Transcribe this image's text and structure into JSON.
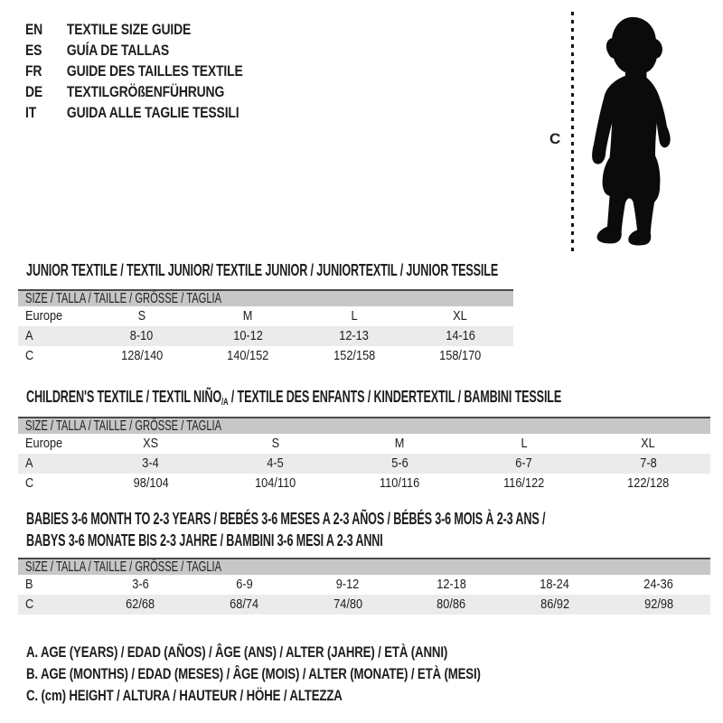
{
  "colors": {
    "header_band": "#c7c7c7",
    "shaded_row": "#ebebeb",
    "band_top_border": "#4a4a4a",
    "text": "#1d1d1d"
  },
  "languages": [
    {
      "code": "EN",
      "title": "TEXTILE SIZE GUIDE"
    },
    {
      "code": "ES",
      "title": "GUÍA DE TALLAS"
    },
    {
      "code": "FR",
      "title": "GUIDE DES TAILLES TEXTILE"
    },
    {
      "code": "DE",
      "title": "TEXTILGRÖßENFÜHRUNG"
    },
    {
      "code": "IT",
      "title": "GUIDA ALLE TAGLIE TESSILI"
    }
  ],
  "figure": {
    "height_label": "C",
    "silhouette": "toddler-silhouette"
  },
  "sections": [
    {
      "title": "JUNIOR TEXTILE / TEXTIL JUNIOR/ TEXTILE JUNIOR / JUNIORTEXTIL / JUNIOR TESSILE",
      "table": {
        "header": "SIZE / TALLA / TAILLE / GRÖSSE / TAGLIA",
        "rows": [
          {
            "label": "Europe",
            "shaded": false,
            "values": [
              "S",
              "M",
              "L",
              "XL"
            ]
          },
          {
            "label": "A",
            "shaded": true,
            "values": [
              "8-10",
              "10-12",
              "12-13",
              "14-16"
            ]
          },
          {
            "label": "C",
            "shaded": false,
            "values": [
              "128/140",
              "140/152",
              "152/158",
              "158/170"
            ]
          }
        ]
      }
    },
    {
      "title_parts": {
        "pre": "CHILDREN'S TEXTILE / TEXTIL NIÑO",
        "sub": "/A",
        "post": " / TEXTILE DES ENFANTS / KINDERTEXTIL / BAMBINI TESSILE"
      },
      "table": {
        "header": "SIZE / TALLA / TAILLE / GRÖSSE / TAGLIA",
        "rows": [
          {
            "label": "Europe",
            "shaded": false,
            "values": [
              "XS",
              "S",
              "M",
              "L",
              "XL"
            ]
          },
          {
            "label": "A",
            "shaded": true,
            "values": [
              "3-4",
              "4-5",
              "5-6",
              "6-7",
              "7-8"
            ]
          },
          {
            "label": "C",
            "shaded": false,
            "values": [
              "98/104",
              "104/110",
              "110/116",
              "116/122",
              "122/128"
            ]
          }
        ]
      }
    },
    {
      "title_lines": [
        "BABIES 3-6 MONTH TO 2-3 YEARS / BEBÉS 3-6 MESES A 2-3 AÑOS / BÉBÉS 3-6 MOIS À 2-3 ANS /",
        "BABYS 3-6 MONATE BIS 2-3 JAHRE / BAMBINI 3-6 MESI A 2-3 ANNI"
      ],
      "table": {
        "header": "SIZE / TALLA / TAILLE / GRÖSSE / TAGLIA",
        "rows": [
          {
            "label": "B",
            "shaded": false,
            "values": [
              "3-6",
              "6-9",
              "9-12",
              "12-18",
              "18-24",
              "24-36"
            ]
          },
          {
            "label": "C",
            "shaded": true,
            "values": [
              "62/68",
              "68/74",
              "74/80",
              "80/86",
              "86/92",
              "92/98"
            ]
          }
        ]
      }
    }
  ],
  "footnotes": [
    "A. AGE (YEARS) / EDAD (AÑOS) / ÂGE (ANS) / ALTER (JAHRE) / ETÀ (ANNI)",
    "B. AGE (MONTHS) / EDAD (MESES) / ÂGE (MOIS) / ALTER (MONATE) / ETÀ (MESI)",
    "C. (cm) HEIGHT / ALTURA / HAUTEUR / HÖHE / ALTEZZA"
  ]
}
